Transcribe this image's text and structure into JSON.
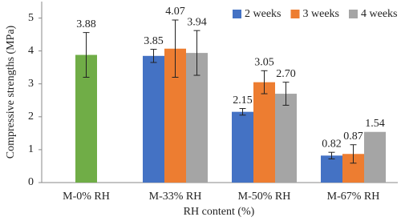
{
  "chart_data": {
    "type": "bar",
    "x_label": "RH content (%)",
    "y_label": "Compressive strengths (MPa)",
    "categories": [
      "M-0% RH",
      "M-33% RH",
      "M-50% RH",
      "M-67% RH"
    ],
    "series": [
      {
        "color": "#70ad47",
        "values": [
          3.88,
          null,
          null,
          null
        ],
        "errors": [
          0.68,
          null,
          null,
          null
        ],
        "value_labels": [
          "3.88",
          null,
          null,
          null
        ]
      },
      {
        "name": "2 weeks",
        "color": "#4472c4",
        "values": [
          null,
          3.85,
          2.15,
          0.82
        ],
        "errors": [
          null,
          0.2,
          0.1,
          0.1
        ],
        "value_labels": [
          null,
          "3.85",
          "2.15",
          "0.82"
        ]
      },
      {
        "name": "3 weeks",
        "color": "#ed7d31",
        "values": [
          null,
          4.07,
          3.05,
          0.87
        ],
        "errors": [
          null,
          0.87,
          0.35,
          0.28
        ],
        "value_labels": [
          null,
          "4.07",
          "3.05",
          "0.87"
        ]
      },
      {
        "name": "4 weeks",
        "color": "#a5a5a5",
        "values": [
          null,
          3.94,
          2.7,
          1.54
        ],
        "errors": [
          null,
          0.68,
          0.35,
          null
        ],
        "value_labels": [
          null,
          "3.94",
          "2.70",
          "1.54"
        ]
      }
    ],
    "ylim": [
      0,
      5.5
    ],
    "yticks": [
      0,
      1,
      2,
      3,
      4,
      5
    ],
    "grid": false,
    "legend": "top-right"
  }
}
